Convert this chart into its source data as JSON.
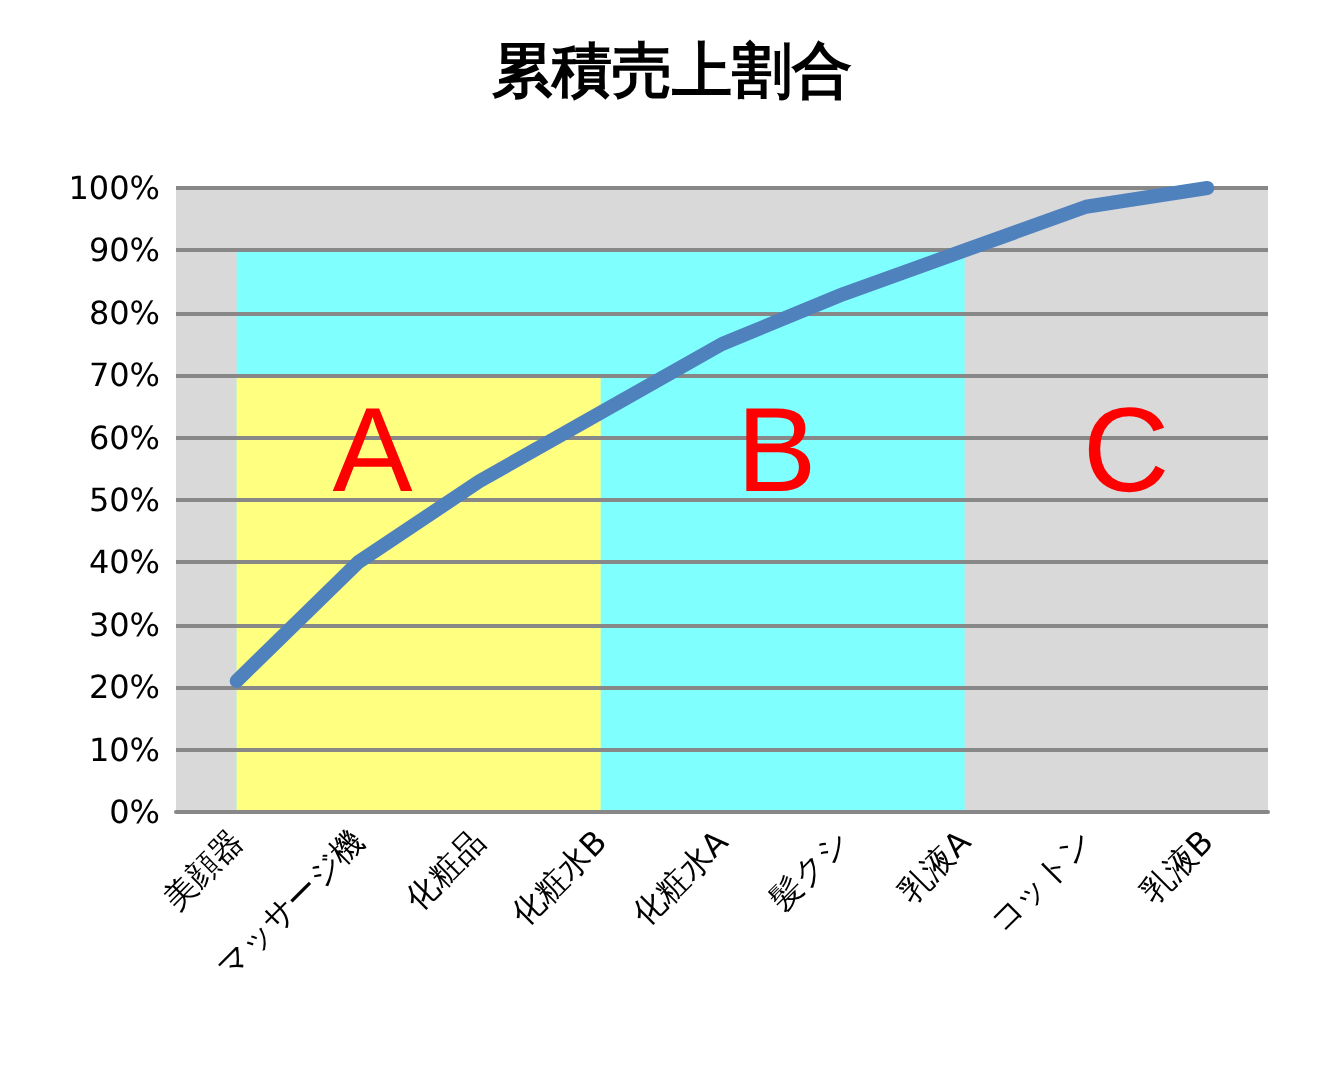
{
  "chart_data": {
    "type": "line",
    "title": "累積売上割合",
    "categories": [
      "美顔器",
      "マッサージ機",
      "化粧品",
      "化粧水B",
      "化粧水A",
      "髪クシ",
      "乳液A",
      "コットン",
      "乳液B"
    ],
    "series": [
      {
        "type": "area",
        "color": "#80ffff",
        "values": [
          90,
          90,
          90,
          90,
          90,
          90,
          90,
          null,
          null
        ]
      },
      {
        "type": "area",
        "color": "#ffff80",
        "values": [
          70,
          70,
          70,
          70,
          null,
          null,
          null,
          null,
          null
        ]
      },
      {
        "color": "#4f81bd",
        "values": [
          21,
          40,
          53,
          64,
          75,
          83,
          90,
          97,
          100
        ]
      }
    ],
    "bands": [
      {
        "axis": "y",
        "from": 0,
        "to": 100,
        "color": "#d9d9d9"
      }
    ],
    "ylim": [
      0,
      100
    ],
    "yticks": [
      {
        "value": 0,
        "label": "0%"
      },
      {
        "value": 10,
        "label": "10%"
      },
      {
        "value": 20,
        "label": "20%"
      },
      {
        "value": 30,
        "label": "30%"
      },
      {
        "value": 40,
        "label": "40%"
      },
      {
        "value": 50,
        "label": "50%"
      },
      {
        "value": 60,
        "label": "60%"
      },
      {
        "value": 70,
        "label": "70%"
      },
      {
        "value": 80,
        "label": "80%"
      },
      {
        "value": 90,
        "label": "90%"
      },
      {
        "value": 100,
        "label": "100%"
      }
    ],
    "grid": "y",
    "marker": "none",
    "line_style": "solid",
    "annotations": [
      "A",
      "B",
      "C"
    ]
  }
}
